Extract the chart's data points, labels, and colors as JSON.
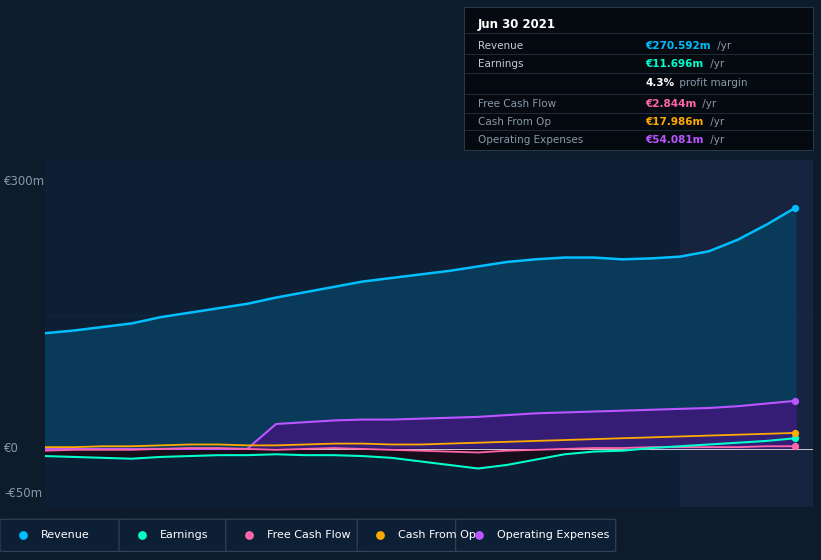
{
  "bg_color": "#0d1b2a",
  "plot_bg": "#0d1f35",
  "highlight_bg": "#162440",
  "grid_color": "#1e3050",
  "text_color": "#8899aa",
  "zero_line_color": "#cccccc",
  "ylabel_300": "€300m",
  "ylabel_0": "€0",
  "ylabel_neg50": "-€50m",
  "years": [
    2015.0,
    2015.25,
    2015.5,
    2015.75,
    2016.0,
    2016.25,
    2016.5,
    2016.75,
    2017.0,
    2017.25,
    2017.5,
    2017.75,
    2018.0,
    2018.25,
    2018.5,
    2018.75,
    2019.0,
    2019.25,
    2019.5,
    2019.75,
    2020.0,
    2020.25,
    2020.5,
    2020.75,
    2021.0,
    2021.25,
    2021.5
  ],
  "revenue": [
    130,
    133,
    137,
    141,
    148,
    153,
    158,
    163,
    170,
    176,
    182,
    188,
    192,
    196,
    200,
    205,
    210,
    213,
    215,
    215,
    213,
    214,
    216,
    222,
    235,
    252,
    271
  ],
  "earnings": [
    -8,
    -9,
    -10,
    -11,
    -9,
    -8,
    -7,
    -7,
    -6,
    -7,
    -7,
    -8,
    -10,
    -14,
    -18,
    -22,
    -18,
    -12,
    -6,
    -3,
    -2,
    1,
    3,
    5,
    7,
    9,
    12
  ],
  "free_cash_flow": [
    -2,
    -1,
    -1,
    -1,
    0,
    1,
    1,
    0,
    -1,
    0,
    1,
    0,
    -1,
    -2,
    -3,
    -4,
    -2,
    -1,
    0,
    1,
    1,
    2,
    2,
    2,
    2,
    3,
    3
  ],
  "cash_from_op": [
    2,
    2,
    3,
    3,
    4,
    5,
    5,
    4,
    4,
    5,
    6,
    6,
    5,
    5,
    6,
    7,
    8,
    9,
    10,
    11,
    12,
    13,
    14,
    15,
    16,
    17,
    18
  ],
  "operating_expenses": [
    0,
    0,
    0,
    0,
    0,
    0,
    0,
    0,
    28,
    30,
    32,
    33,
    33,
    34,
    35,
    36,
    38,
    40,
    41,
    42,
    43,
    44,
    45,
    46,
    48,
    51,
    54
  ],
  "revenue_color": "#00bfff",
  "earnings_color": "#00ffcc",
  "free_cash_flow_color": "#ff66aa",
  "cash_from_op_color": "#ffaa00",
  "operating_expenses_color": "#bb55ff",
  "revenue_fill": "#0a3a5a",
  "operating_expenses_fill": "#3a1a7a",
  "highlight_x_start": 2020.5,
  "tooltip_title": "Jun 30 2021",
  "tooltip_rows": [
    {
      "label": "Revenue",
      "value": "€270.592m",
      "suffix": " /yr",
      "value_color": "#00bfff"
    },
    {
      "label": "Earnings",
      "value": "€11.696m",
      "suffix": " /yr",
      "value_color": "#00ffcc"
    },
    {
      "label": "",
      "value": "4.3%",
      "suffix": " profit margin",
      "value_color": "#ffffff"
    },
    {
      "label": "Free Cash Flow",
      "value": "€2.844m",
      "suffix": " /yr",
      "value_color": "#ff66aa"
    },
    {
      "label": "Cash From Op",
      "value": "€17.986m",
      "suffix": " /yr",
      "value_color": "#ffaa00"
    },
    {
      "label": "Operating Expenses",
      "value": "€54.081m",
      "suffix": " /yr",
      "value_color": "#bb55ff"
    }
  ],
  "legend_items": [
    {
      "label": "Revenue",
      "color": "#00bfff"
    },
    {
      "label": "Earnings",
      "color": "#00ffcc"
    },
    {
      "label": "Free Cash Flow",
      "color": "#ff66aa"
    },
    {
      "label": "Cash From Op",
      "color": "#ffaa00"
    },
    {
      "label": "Operating Expenses",
      "color": "#bb55ff"
    }
  ],
  "xlim": [
    2015.0,
    2021.65
  ],
  "ylim": [
    -65,
    325
  ],
  "y_zero": 0,
  "y_300": 300,
  "y_neg50": -50,
  "xticks": [
    2016,
    2017,
    2018,
    2019,
    2020,
    2021
  ],
  "figsize": [
    8.21,
    5.6
  ],
  "dpi": 100
}
